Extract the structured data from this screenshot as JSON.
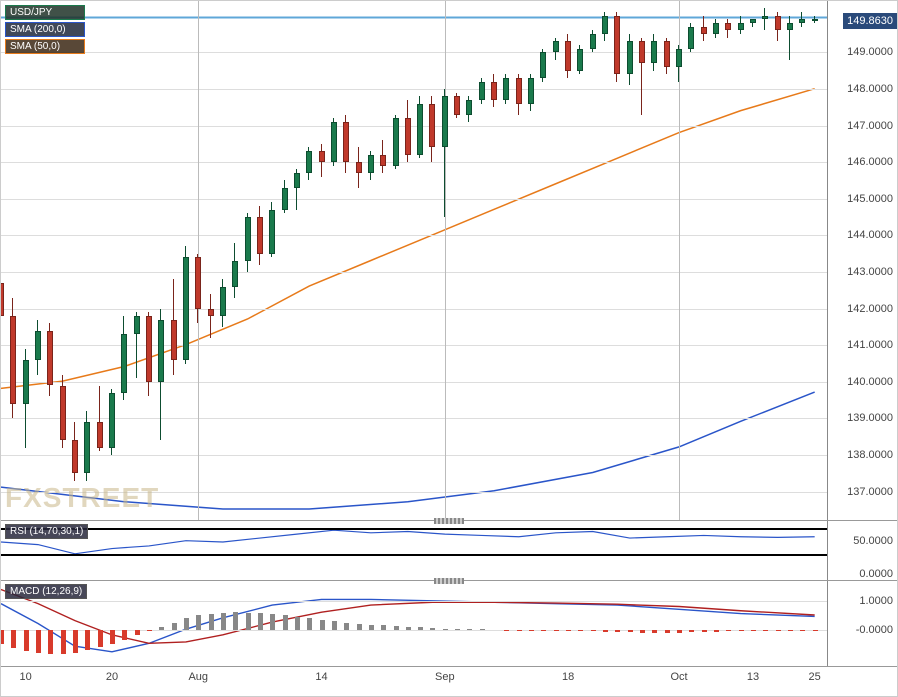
{
  "symbol": "USD/JPY",
  "price_tag": "149.8630",
  "watermark": "FXSTREET",
  "colors": {
    "grid": "#dddddd",
    "axis_text": "#444444",
    "sma200": "#2a55c9",
    "sma50": "#e77a1a",
    "candle_up_fill": "#1a7a4c",
    "candle_up_border": "#0d4d30",
    "candle_down_fill": "#c0392b",
    "candle_down_border": "#7a241b",
    "resistance": "#5fa7d8",
    "legend_border_symbol": "#1a7a4c",
    "legend_border_sma200": "#2a55c9",
    "legend_border_sma50": "#e77a1a",
    "rsi_line": "#2a55c9",
    "macd_line": "#2a55c9",
    "signal_line": "#b02020",
    "macd_hist_pos": "#888888",
    "macd_hist_neg": "#d83a2b",
    "price_tag_bg": "#2a4a7a"
  },
  "legends": {
    "symbol": "USD/JPY",
    "sma200": "SMA (200,0)",
    "sma50": "SMA (50,0)"
  },
  "price": {
    "ymin": 136.2,
    "ymax": 150.4,
    "yticks": [
      137,
      138,
      139,
      140,
      141,
      142,
      143,
      144,
      145,
      146,
      147,
      148,
      149
    ],
    "resistance": 149.95,
    "candles": [
      {
        "t": 0,
        "o": 142.7,
        "h": 143.5,
        "l": 141.5,
        "c": 141.8
      },
      {
        "t": 1,
        "o": 141.8,
        "h": 142.3,
        "l": 139.0,
        "c": 139.4
      },
      {
        "t": 2,
        "o": 139.4,
        "h": 140.9,
        "l": 138.2,
        "c": 140.6
      },
      {
        "t": 3,
        "o": 140.6,
        "h": 141.7,
        "l": 140.2,
        "c": 141.4
      },
      {
        "t": 4,
        "o": 141.4,
        "h": 141.6,
        "l": 139.6,
        "c": 139.9
      },
      {
        "t": 5,
        "o": 139.9,
        "h": 140.2,
        "l": 138.2,
        "c": 138.4
      },
      {
        "t": 6,
        "o": 138.4,
        "h": 138.9,
        "l": 137.3,
        "c": 137.5
      },
      {
        "t": 7,
        "o": 137.5,
        "h": 139.2,
        "l": 137.3,
        "c": 138.9
      },
      {
        "t": 8,
        "o": 138.9,
        "h": 139.9,
        "l": 138.1,
        "c": 138.2
      },
      {
        "t": 9,
        "o": 138.2,
        "h": 139.8,
        "l": 138.0,
        "c": 139.7
      },
      {
        "t": 10,
        "o": 139.7,
        "h": 141.8,
        "l": 139.5,
        "c": 141.3
      },
      {
        "t": 11,
        "o": 141.3,
        "h": 141.9,
        "l": 140.1,
        "c": 141.8
      },
      {
        "t": 12,
        "o": 141.8,
        "h": 141.9,
        "l": 139.6,
        "c": 140.0
      },
      {
        "t": 13,
        "o": 140.0,
        "h": 142.0,
        "l": 138.4,
        "c": 141.7
      },
      {
        "t": 14,
        "o": 141.7,
        "h": 142.8,
        "l": 140.2,
        "c": 140.6
      },
      {
        "t": 15,
        "o": 140.6,
        "h": 143.7,
        "l": 140.5,
        "c": 143.4
      },
      {
        "t": 16,
        "o": 143.4,
        "h": 143.5,
        "l": 141.6,
        "c": 142.0
      },
      {
        "t": 17,
        "o": 142.0,
        "h": 142.4,
        "l": 141.2,
        "c": 141.8
      },
      {
        "t": 18,
        "o": 141.8,
        "h": 142.8,
        "l": 141.5,
        "c": 142.6
      },
      {
        "t": 19,
        "o": 142.6,
        "h": 143.8,
        "l": 142.3,
        "c": 143.3
      },
      {
        "t": 20,
        "o": 143.3,
        "h": 144.6,
        "l": 143.0,
        "c": 144.5
      },
      {
        "t": 21,
        "o": 144.5,
        "h": 144.8,
        "l": 143.2,
        "c": 143.5
      },
      {
        "t": 22,
        "o": 143.5,
        "h": 144.9,
        "l": 143.4,
        "c": 144.7
      },
      {
        "t": 23,
        "o": 144.7,
        "h": 145.5,
        "l": 144.6,
        "c": 145.3
      },
      {
        "t": 24,
        "o": 145.3,
        "h": 145.8,
        "l": 144.7,
        "c": 145.7
      },
      {
        "t": 25,
        "o": 145.7,
        "h": 146.4,
        "l": 145.5,
        "c": 146.3
      },
      {
        "t": 26,
        "o": 146.3,
        "h": 146.5,
        "l": 145.6,
        "c": 146.0
      },
      {
        "t": 27,
        "o": 146.0,
        "h": 147.2,
        "l": 145.9,
        "c": 147.1
      },
      {
        "t": 28,
        "o": 147.1,
        "h": 147.3,
        "l": 145.7,
        "c": 146.0
      },
      {
        "t": 29,
        "o": 146.0,
        "h": 146.4,
        "l": 145.3,
        "c": 145.7
      },
      {
        "t": 30,
        "o": 145.7,
        "h": 146.3,
        "l": 145.5,
        "c": 146.2
      },
      {
        "t": 31,
        "o": 146.2,
        "h": 146.6,
        "l": 145.7,
        "c": 145.9
      },
      {
        "t": 32,
        "o": 145.9,
        "h": 147.3,
        "l": 145.8,
        "c": 147.2
      },
      {
        "t": 33,
        "o": 147.2,
        "h": 147.7,
        "l": 146.0,
        "c": 146.2
      },
      {
        "t": 34,
        "o": 146.2,
        "h": 147.8,
        "l": 146.1,
        "c": 147.6
      },
      {
        "t": 35,
        "o": 147.6,
        "h": 147.8,
        "l": 146.0,
        "c": 146.4
      },
      {
        "t": 36,
        "o": 146.4,
        "h": 148.0,
        "l": 144.5,
        "c": 147.8
      },
      {
        "t": 37,
        "o": 147.8,
        "h": 147.9,
        "l": 147.2,
        "c": 147.3
      },
      {
        "t": 38,
        "o": 147.3,
        "h": 147.8,
        "l": 147.1,
        "c": 147.7
      },
      {
        "t": 39,
        "o": 147.7,
        "h": 148.3,
        "l": 147.6,
        "c": 148.2
      },
      {
        "t": 40,
        "o": 148.2,
        "h": 148.4,
        "l": 147.5,
        "c": 147.7
      },
      {
        "t": 41,
        "o": 147.7,
        "h": 148.4,
        "l": 147.6,
        "c": 148.3
      },
      {
        "t": 42,
        "o": 148.3,
        "h": 148.4,
        "l": 147.3,
        "c": 147.6
      },
      {
        "t": 43,
        "o": 147.6,
        "h": 148.4,
        "l": 147.4,
        "c": 148.3
      },
      {
        "t": 44,
        "o": 148.3,
        "h": 149.1,
        "l": 148.2,
        "c": 149.0
      },
      {
        "t": 45,
        "o": 149.0,
        "h": 149.4,
        "l": 148.8,
        "c": 149.3
      },
      {
        "t": 46,
        "o": 149.3,
        "h": 149.5,
        "l": 148.3,
        "c": 148.5
      },
      {
        "t": 47,
        "o": 148.5,
        "h": 149.2,
        "l": 148.4,
        "c": 149.1
      },
      {
        "t": 48,
        "o": 149.1,
        "h": 149.6,
        "l": 149.0,
        "c": 149.5
      },
      {
        "t": 49,
        "o": 149.5,
        "h": 150.1,
        "l": 149.3,
        "c": 150.0
      },
      {
        "t": 50,
        "o": 150.0,
        "h": 150.1,
        "l": 148.2,
        "c": 148.4
      },
      {
        "t": 51,
        "o": 148.4,
        "h": 149.5,
        "l": 148.1,
        "c": 149.3
      },
      {
        "t": 52,
        "o": 149.3,
        "h": 149.4,
        "l": 147.3,
        "c": 148.7
      },
      {
        "t": 53,
        "o": 148.7,
        "h": 149.5,
        "l": 148.5,
        "c": 149.3
      },
      {
        "t": 54,
        "o": 149.3,
        "h": 149.4,
        "l": 148.4,
        "c": 148.6
      },
      {
        "t": 55,
        "o": 148.6,
        "h": 149.2,
        "l": 148.2,
        "c": 149.1
      },
      {
        "t": 56,
        "o": 149.1,
        "h": 149.8,
        "l": 149.0,
        "c": 149.7
      },
      {
        "t": 57,
        "o": 149.7,
        "h": 150.0,
        "l": 149.3,
        "c": 149.5
      },
      {
        "t": 58,
        "o": 149.5,
        "h": 149.9,
        "l": 149.4,
        "c": 149.8
      },
      {
        "t": 59,
        "o": 149.8,
        "h": 149.9,
        "l": 149.4,
        "c": 149.6
      },
      {
        "t": 60,
        "o": 149.6,
        "h": 150.0,
        "l": 149.5,
        "c": 149.8
      },
      {
        "t": 61,
        "o": 149.8,
        "h": 149.9,
        "l": 149.7,
        "c": 149.9
      },
      {
        "t": 62,
        "o": 149.9,
        "h": 150.2,
        "l": 149.6,
        "c": 150.0
      },
      {
        "t": 63,
        "o": 150.0,
        "h": 150.1,
        "l": 149.3,
        "c": 149.6
      },
      {
        "t": 64,
        "o": 149.6,
        "h": 150.0,
        "l": 148.8,
        "c": 149.8
      },
      {
        "t": 65,
        "o": 149.8,
        "h": 150.1,
        "l": 149.7,
        "c": 149.9
      },
      {
        "t": 66,
        "o": 149.9,
        "h": 150.0,
        "l": 149.8,
        "c": 149.9
      }
    ],
    "sma50": [
      {
        "t": 0,
        "v": 139.8
      },
      {
        "t": 5,
        "v": 140.0
      },
      {
        "t": 10,
        "v": 140.4
      },
      {
        "t": 15,
        "v": 141.0
      },
      {
        "t": 20,
        "v": 141.7
      },
      {
        "t": 25,
        "v": 142.6
      },
      {
        "t": 30,
        "v": 143.3
      },
      {
        "t": 35,
        "v": 144.0
      },
      {
        "t": 40,
        "v": 144.7
      },
      {
        "t": 45,
        "v": 145.4
      },
      {
        "t": 50,
        "v": 146.1
      },
      {
        "t": 55,
        "v": 146.8
      },
      {
        "t": 60,
        "v": 147.4
      },
      {
        "t": 66,
        "v": 148.0
      }
    ],
    "sma200": [
      {
        "t": 0,
        "v": 137.1
      },
      {
        "t": 10,
        "v": 136.7
      },
      {
        "t": 18,
        "v": 136.5
      },
      {
        "t": 25,
        "v": 136.5
      },
      {
        "t": 33,
        "v": 136.7
      },
      {
        "t": 40,
        "v": 137.0
      },
      {
        "t": 48,
        "v": 137.5
      },
      {
        "t": 55,
        "v": 138.2
      },
      {
        "t": 60,
        "v": 138.9
      },
      {
        "t": 66,
        "v": 139.7
      }
    ]
  },
  "rsi": {
    "label": "RSI (14,70,30,1)",
    "ymin": -10,
    "ymax": 80,
    "yticks": [
      0,
      50
    ],
    "upper": 70,
    "lower": 30,
    "values": [
      {
        "t": 0,
        "v": 48
      },
      {
        "t": 3,
        "v": 44
      },
      {
        "t": 6,
        "v": 30
      },
      {
        "t": 9,
        "v": 38
      },
      {
        "t": 12,
        "v": 42
      },
      {
        "t": 15,
        "v": 50
      },
      {
        "t": 18,
        "v": 48
      },
      {
        "t": 21,
        "v": 54
      },
      {
        "t": 24,
        "v": 60
      },
      {
        "t": 27,
        "v": 66
      },
      {
        "t": 30,
        "v": 62
      },
      {
        "t": 33,
        "v": 64
      },
      {
        "t": 36,
        "v": 60
      },
      {
        "t": 39,
        "v": 58
      },
      {
        "t": 42,
        "v": 56
      },
      {
        "t": 45,
        "v": 62
      },
      {
        "t": 48,
        "v": 64
      },
      {
        "t": 51,
        "v": 54
      },
      {
        "t": 54,
        "v": 56
      },
      {
        "t": 57,
        "v": 58
      },
      {
        "t": 60,
        "v": 56
      },
      {
        "t": 63,
        "v": 55
      },
      {
        "t": 66,
        "v": 56
      }
    ]
  },
  "macd": {
    "label": "MACD (12,26,9)",
    "ymin": -1.3,
    "ymax": 1.7,
    "yticks": [
      0,
      1
    ],
    "ytick_labels": [
      "-0.0000",
      "1.0000"
    ],
    "macd_line": [
      {
        "t": 0,
        "v": 0.9
      },
      {
        "t": 3,
        "v": 0.2
      },
      {
        "t": 6,
        "v": -0.6
      },
      {
        "t": 9,
        "v": -0.8
      },
      {
        "t": 12,
        "v": -0.5
      },
      {
        "t": 15,
        "v": 0.0
      },
      {
        "t": 18,
        "v": 0.4
      },
      {
        "t": 22,
        "v": 0.85
      },
      {
        "t": 26,
        "v": 1.05
      },
      {
        "t": 30,
        "v": 1.05
      },
      {
        "t": 35,
        "v": 1.0
      },
      {
        "t": 40,
        "v": 0.95
      },
      {
        "t": 45,
        "v": 0.9
      },
      {
        "t": 50,
        "v": 0.85
      },
      {
        "t": 55,
        "v": 0.7
      },
      {
        "t": 60,
        "v": 0.55
      },
      {
        "t": 66,
        "v": 0.45
      }
    ],
    "signal_line": [
      {
        "t": 0,
        "v": 1.4
      },
      {
        "t": 3,
        "v": 0.9
      },
      {
        "t": 6,
        "v": 0.3
      },
      {
        "t": 9,
        "v": -0.2
      },
      {
        "t": 12,
        "v": -0.5
      },
      {
        "t": 15,
        "v": -0.45
      },
      {
        "t": 18,
        "v": -0.2
      },
      {
        "t": 22,
        "v": 0.25
      },
      {
        "t": 26,
        "v": 0.6
      },
      {
        "t": 30,
        "v": 0.85
      },
      {
        "t": 35,
        "v": 0.95
      },
      {
        "t": 40,
        "v": 0.95
      },
      {
        "t": 45,
        "v": 0.92
      },
      {
        "t": 50,
        "v": 0.88
      },
      {
        "t": 55,
        "v": 0.8
      },
      {
        "t": 60,
        "v": 0.65
      },
      {
        "t": 66,
        "v": 0.5
      }
    ],
    "histogram": [
      -0.5,
      -0.65,
      -0.75,
      -0.8,
      -0.85,
      -0.85,
      -0.8,
      -0.7,
      -0.6,
      -0.5,
      -0.35,
      -0.2,
      -0.05,
      0.1,
      0.25,
      0.4,
      0.5,
      0.55,
      0.6,
      0.62,
      0.6,
      0.58,
      0.55,
      0.5,
      0.45,
      0.4,
      0.35,
      0.3,
      0.25,
      0.2,
      0.18,
      0.15,
      0.12,
      0.1,
      0.08,
      0.06,
      0.04,
      0.03,
      0.02,
      0.01,
      0,
      -0.01,
      -0.02,
      -0.03,
      -0.04,
      -0.05,
      -0.05,
      -0.05,
      -0.06,
      -0.07,
      -0.08,
      -0.09,
      -0.1,
      -0.11,
      -0.11,
      -0.1,
      -0.09,
      -0.08,
      -0.07,
      -0.06,
      -0.05,
      -0.05,
      -0.04,
      -0.04,
      -0.04,
      -0.04,
      -0.04
    ]
  },
  "xaxis": {
    "tmin": 0,
    "tmax": 67,
    "ticks": [
      {
        "t": 2,
        "label": "10"
      },
      {
        "t": 9,
        "label": "20"
      },
      {
        "t": 16,
        "label": "Aug"
      },
      {
        "t": 26,
        "label": "14"
      },
      {
        "t": 36,
        "label": "Sep"
      },
      {
        "t": 46,
        "label": "18"
      },
      {
        "t": 55,
        "label": "Oct"
      },
      {
        "t": 61,
        "label": "13"
      },
      {
        "t": 66,
        "label": "25"
      }
    ]
  }
}
